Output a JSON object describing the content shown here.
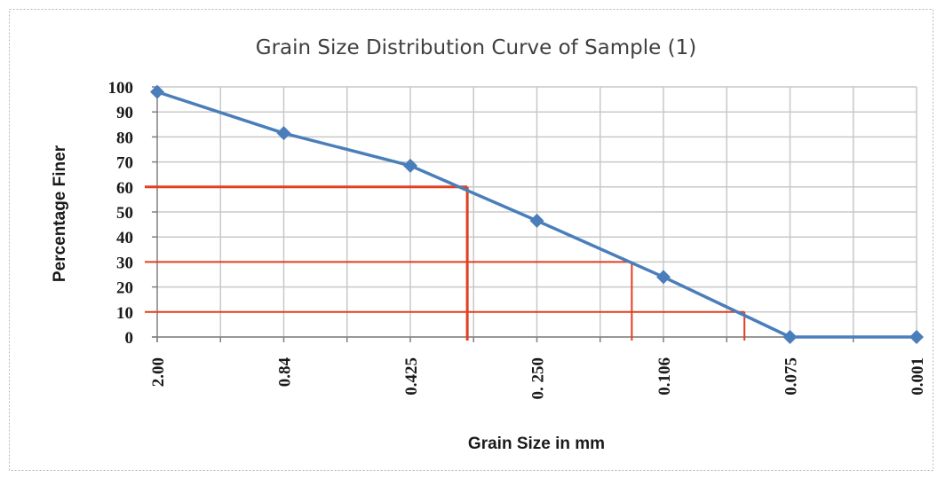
{
  "chart_data": {
    "type": "line",
    "title": "Grain Size Distribution Curve of Sample (1)",
    "xlabel": "Grain Size in mm",
    "ylabel": "Percentage Finer",
    "categories": [
      "2.00",
      "0.84",
      "0.425",
      "0. 250",
      "0.106",
      "0.075",
      "0.001"
    ],
    "series": [
      {
        "values": [
          98,
          81.5,
          68.5,
          46.5,
          24,
          0,
          0
        ],
        "color": "#4a7ebb"
      }
    ],
    "ylim": [
      0,
      100
    ],
    "yticks": [
      "0",
      "10",
      "20",
      "30",
      "40",
      "50",
      "60",
      "70",
      "80",
      "90",
      "100"
    ],
    "grid": true,
    "legend": "none",
    "reference_lines": [
      {
        "percent": 60,
        "x_category_index": 2.45,
        "color": "#e0401f"
      },
      {
        "percent": 30,
        "x_category_index": 3.75,
        "color": "#e0401f"
      },
      {
        "percent": 10,
        "x_category_index": 4.64,
        "color": "#e0401f"
      }
    ],
    "colors": {
      "series": "#4a7ebb",
      "reference": "#e0401f",
      "grid": "#c8c8c8",
      "axis": "#808080"
    }
  }
}
